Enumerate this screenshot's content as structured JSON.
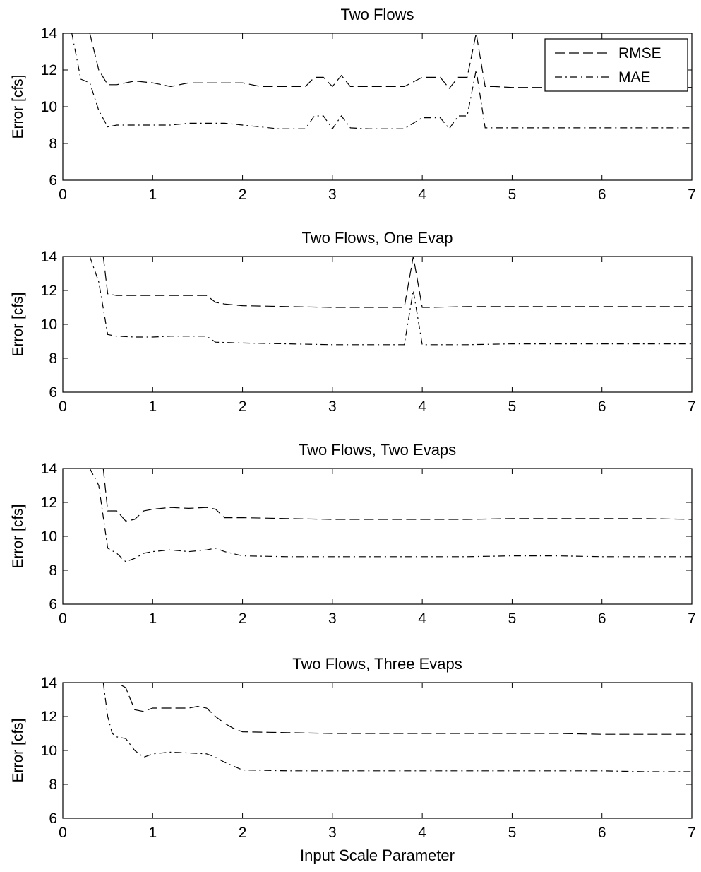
{
  "chart_data": [
    {
      "type": "line",
      "title": "Two Flows",
      "ylabel": "Error [cfs]",
      "xlabel": "",
      "xlim": [
        0,
        7
      ],
      "ylim": [
        6,
        14
      ],
      "xticks": [
        0,
        1,
        2,
        3,
        4,
        5,
        6,
        7
      ],
      "yticks": [
        6,
        8,
        10,
        12,
        14
      ],
      "grid": false,
      "legend": {
        "position": "top-right",
        "entries": [
          "RMSE",
          "MAE"
        ]
      },
      "series": [
        {
          "name": "RMSE",
          "style": "dashed",
          "x": [
            0.3,
            0.4,
            0.5,
            0.6,
            0.8,
            1.0,
            1.2,
            1.4,
            1.6,
            1.8,
            2.0,
            2.2,
            2.4,
            2.6,
            2.7,
            2.8,
            2.9,
            3.0,
            3.1,
            3.2,
            3.4,
            3.6,
            3.8,
            4.0,
            4.1,
            4.2,
            4.3,
            4.4,
            4.5,
            4.6,
            4.7,
            4.8,
            5.0,
            5.5,
            6.0,
            6.5,
            7.0
          ],
          "y": [
            14.0,
            12.0,
            11.2,
            11.2,
            11.4,
            11.3,
            11.1,
            11.3,
            11.3,
            11.3,
            11.3,
            11.1,
            11.1,
            11.1,
            11.1,
            11.6,
            11.6,
            11.1,
            11.7,
            11.1,
            11.1,
            11.1,
            11.1,
            11.6,
            11.6,
            11.6,
            11.0,
            11.6,
            11.6,
            14.0,
            11.1,
            11.1,
            11.05,
            11.05,
            11.05,
            11.05,
            11.05
          ]
        },
        {
          "name": "MAE",
          "style": "dashdot",
          "x": [
            0.1,
            0.2,
            0.3,
            0.4,
            0.5,
            0.6,
            0.8,
            1.0,
            1.2,
            1.4,
            1.6,
            1.8,
            2.0,
            2.2,
            2.4,
            2.6,
            2.7,
            2.8,
            2.9,
            3.0,
            3.1,
            3.2,
            3.4,
            3.6,
            3.8,
            4.0,
            4.1,
            4.2,
            4.3,
            4.4,
            4.5,
            4.6,
            4.7,
            4.8,
            5.0,
            5.5,
            6.0,
            6.5,
            7.0
          ],
          "y": [
            14.0,
            11.5,
            11.3,
            9.8,
            8.9,
            9.0,
            9.0,
            9.0,
            9.0,
            9.1,
            9.1,
            9.1,
            9.0,
            8.9,
            8.8,
            8.8,
            8.8,
            9.5,
            9.5,
            8.8,
            9.5,
            8.85,
            8.8,
            8.8,
            8.8,
            9.4,
            9.4,
            9.4,
            8.8,
            9.5,
            9.5,
            12.0,
            8.85,
            8.85,
            8.85,
            8.85,
            8.85,
            8.85,
            8.85
          ]
        }
      ]
    },
    {
      "type": "line",
      "title": "Two Flows, One Evap",
      "ylabel": "Error [cfs]",
      "xlabel": "",
      "xlim": [
        0,
        7
      ],
      "ylim": [
        6,
        14
      ],
      "xticks": [
        0,
        1,
        2,
        3,
        4,
        5,
        6,
        7
      ],
      "yticks": [
        6,
        8,
        10,
        12,
        14
      ],
      "grid": false,
      "series": [
        {
          "name": "RMSE",
          "style": "dashed",
          "x": [
            0.45,
            0.5,
            0.6,
            0.8,
            1.0,
            1.2,
            1.4,
            1.6,
            1.7,
            1.8,
            2.0,
            2.5,
            3.0,
            3.5,
            3.8,
            3.9,
            4.0,
            4.1,
            4.5,
            5.0,
            5.5,
            6.0,
            6.5,
            7.0
          ],
          "y": [
            14.0,
            11.8,
            11.7,
            11.7,
            11.7,
            11.7,
            11.7,
            11.7,
            11.3,
            11.2,
            11.1,
            11.05,
            11.0,
            11.0,
            11.0,
            14.0,
            11.0,
            11.0,
            11.05,
            11.05,
            11.05,
            11.05,
            11.05,
            11.05
          ]
        },
        {
          "name": "MAE",
          "style": "dashdot",
          "x": [
            0.3,
            0.4,
            0.5,
            0.6,
            0.8,
            1.0,
            1.2,
            1.4,
            1.6,
            1.7,
            2.0,
            2.5,
            3.0,
            3.5,
            3.8,
            3.9,
            4.0,
            4.5,
            5.0,
            5.5,
            6.0,
            6.5,
            7.0
          ],
          "y": [
            14.0,
            12.5,
            9.4,
            9.3,
            9.25,
            9.25,
            9.3,
            9.3,
            9.3,
            8.95,
            8.9,
            8.85,
            8.8,
            8.8,
            8.8,
            12.0,
            8.8,
            8.8,
            8.85,
            8.85,
            8.85,
            8.85,
            8.85
          ]
        }
      ]
    },
    {
      "type": "line",
      "title": "Two Flows, Two Evaps",
      "ylabel": "Error [cfs]",
      "xlabel": "",
      "xlim": [
        0,
        7
      ],
      "ylim": [
        6,
        14
      ],
      "xticks": [
        0,
        1,
        2,
        3,
        4,
        5,
        6,
        7
      ],
      "yticks": [
        6,
        8,
        10,
        12,
        14
      ],
      "grid": false,
      "series": [
        {
          "name": "RMSE",
          "style": "dashed",
          "x": [
            0.45,
            0.5,
            0.6,
            0.7,
            0.8,
            0.9,
            1.0,
            1.2,
            1.4,
            1.6,
            1.7,
            1.8,
            2.0,
            2.5,
            3.0,
            3.5,
            4.0,
            4.5,
            5.0,
            5.5,
            6.0,
            6.5,
            7.0
          ],
          "y": [
            14.0,
            11.5,
            11.5,
            10.9,
            11.0,
            11.5,
            11.6,
            11.7,
            11.65,
            11.7,
            11.6,
            11.1,
            11.1,
            11.05,
            11.0,
            11.0,
            11.0,
            11.0,
            11.05,
            11.05,
            11.05,
            11.05,
            11.0
          ]
        },
        {
          "name": "MAE",
          "style": "dashdot",
          "x": [
            0.3,
            0.4,
            0.5,
            0.6,
            0.7,
            0.8,
            0.9,
            1.0,
            1.2,
            1.4,
            1.6,
            1.7,
            1.8,
            2.0,
            2.5,
            3.0,
            3.5,
            4.0,
            4.5,
            5.0,
            5.5,
            6.0,
            6.5,
            7.0
          ],
          "y": [
            14.0,
            13.0,
            9.3,
            9.0,
            8.5,
            8.7,
            9.0,
            9.1,
            9.2,
            9.1,
            9.2,
            9.3,
            9.1,
            8.85,
            8.8,
            8.8,
            8.8,
            8.8,
            8.8,
            8.85,
            8.85,
            8.8,
            8.8,
            8.8
          ]
        }
      ]
    },
    {
      "type": "line",
      "title": "Two Flows, Three Evaps",
      "ylabel": "Error [cfs]",
      "xlabel": "Input Scale Parameter",
      "xlim": [
        0,
        7
      ],
      "ylim": [
        6,
        14
      ],
      "xticks": [
        0,
        1,
        2,
        3,
        4,
        5,
        6,
        7
      ],
      "yticks": [
        6,
        8,
        10,
        12,
        14
      ],
      "grid": false,
      "series": [
        {
          "name": "RMSE",
          "style": "dashed",
          "x": [
            0.5,
            0.6,
            0.7,
            0.8,
            0.9,
            1.0,
            1.2,
            1.4,
            1.5,
            1.6,
            1.7,
            1.8,
            1.9,
            2.0,
            2.5,
            3.0,
            3.5,
            4.0,
            4.5,
            5.0,
            5.5,
            6.0,
            6.5,
            7.0
          ],
          "y": [
            14.0,
            14.0,
            13.7,
            12.4,
            12.3,
            12.5,
            12.5,
            12.5,
            12.6,
            12.5,
            12.0,
            11.6,
            11.3,
            11.1,
            11.05,
            11.0,
            11.0,
            11.0,
            11.0,
            11.0,
            11.0,
            10.95,
            10.95,
            10.95
          ]
        },
        {
          "name": "MAE",
          "style": "dashdot",
          "x": [
            0.45,
            0.5,
            0.55,
            0.6,
            0.7,
            0.8,
            0.9,
            1.0,
            1.2,
            1.4,
            1.6,
            1.7,
            1.8,
            2.0,
            2.5,
            3.0,
            3.5,
            4.0,
            4.5,
            5.0,
            5.5,
            6.0,
            6.5,
            7.0
          ],
          "y": [
            14.0,
            12.0,
            11.0,
            10.8,
            10.7,
            10.0,
            9.6,
            9.8,
            9.9,
            9.85,
            9.8,
            9.6,
            9.3,
            8.85,
            8.8,
            8.8,
            8.8,
            8.8,
            8.8,
            8.8,
            8.8,
            8.8,
            8.75,
            8.75
          ]
        }
      ]
    }
  ]
}
